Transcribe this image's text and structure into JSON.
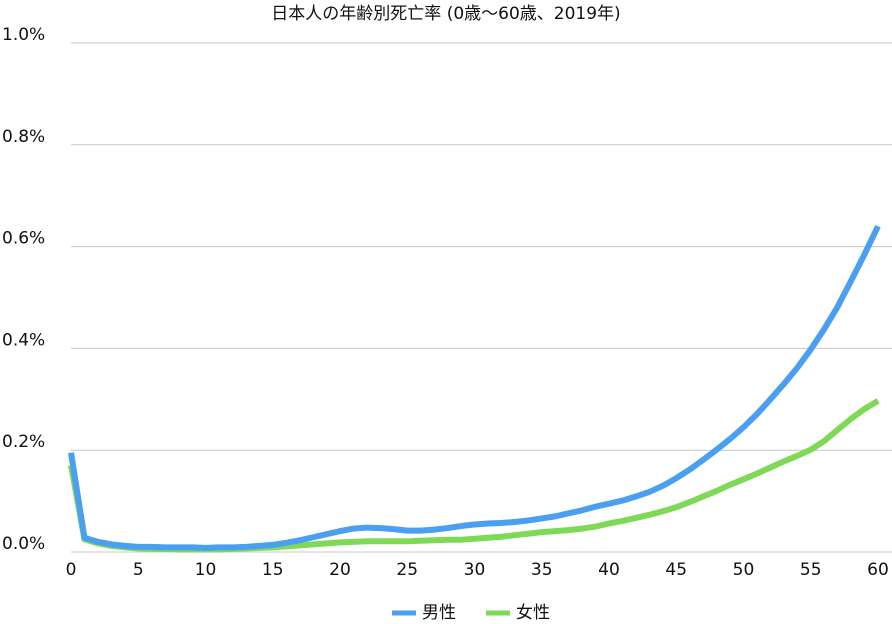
{
  "chart_data": {
    "type": "line",
    "title": "日本人の年齢別死亡率 (0歳〜60歳、2019年)",
    "x": [
      0,
      1,
      2,
      3,
      4,
      5,
      6,
      7,
      8,
      9,
      10,
      11,
      12,
      13,
      14,
      15,
      16,
      17,
      18,
      19,
      20,
      21,
      22,
      23,
      24,
      25,
      26,
      27,
      28,
      29,
      30,
      31,
      32,
      33,
      34,
      35,
      36,
      37,
      38,
      39,
      40,
      41,
      42,
      43,
      44,
      45,
      46,
      47,
      48,
      49,
      50,
      51,
      52,
      53,
      54,
      55,
      56,
      57,
      58,
      59,
      60
    ],
    "series": [
      {
        "name": "男性",
        "color": "#4a9ff0",
        "values": [
          0.195,
          0.028,
          0.02,
          0.015,
          0.012,
          0.01,
          0.01,
          0.009,
          0.009,
          0.009,
          0.008,
          0.009,
          0.009,
          0.01,
          0.012,
          0.014,
          0.018,
          0.023,
          0.029,
          0.035,
          0.041,
          0.046,
          0.048,
          0.047,
          0.045,
          0.042,
          0.042,
          0.044,
          0.047,
          0.051,
          0.054,
          0.056,
          0.057,
          0.059,
          0.062,
          0.066,
          0.07,
          0.076,
          0.082,
          0.089,
          0.095,
          0.101,
          0.109,
          0.118,
          0.13,
          0.145,
          0.162,
          0.181,
          0.201,
          0.222,
          0.245,
          0.271,
          0.3,
          0.33,
          0.362,
          0.398,
          0.438,
          0.482,
          0.533,
          0.585,
          0.64
        ]
      },
      {
        "name": "女性",
        "color": "#7ed957",
        "values": [
          0.17,
          0.025,
          0.017,
          0.012,
          0.009,
          0.007,
          0.006,
          0.006,
          0.005,
          0.005,
          0.005,
          0.005,
          0.006,
          0.007,
          0.008,
          0.009,
          0.011,
          0.013,
          0.015,
          0.017,
          0.019,
          0.02,
          0.021,
          0.021,
          0.021,
          0.021,
          0.022,
          0.023,
          0.024,
          0.024,
          0.026,
          0.028,
          0.03,
          0.033,
          0.036,
          0.039,
          0.041,
          0.043,
          0.046,
          0.05,
          0.056,
          0.061,
          0.067,
          0.073,
          0.08,
          0.088,
          0.098,
          0.109,
          0.12,
          0.132,
          0.143,
          0.154,
          0.166,
          0.178,
          0.189,
          0.201,
          0.218,
          0.24,
          0.262,
          0.281,
          0.297
        ]
      }
    ],
    "xlim": [
      0,
      60
    ],
    "xticks": [
      0,
      5,
      10,
      15,
      20,
      25,
      30,
      35,
      40,
      45,
      50,
      55,
      60
    ],
    "ylim": [
      0,
      1
    ],
    "yticks": [
      {
        "value": 0,
        "label": "0.0%"
      },
      {
        "value": 0.2,
        "label": "0.2%"
      },
      {
        "value": 0.4,
        "label": "0.4%"
      },
      {
        "value": 0.6,
        "label": "0.6%"
      },
      {
        "value": 0.8,
        "label": "0.8%"
      },
      {
        "value": 1,
        "label": "1.0%"
      }
    ],
    "grid": true,
    "legend": "bottom"
  }
}
